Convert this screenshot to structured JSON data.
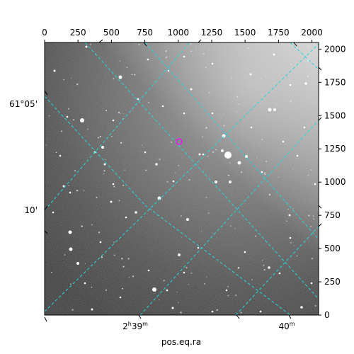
{
  "figure": {
    "xlabel": "pos.eq.ra",
    "pixel_x_ticks": [
      "0",
      "250",
      "500",
      "750",
      "1000",
      "1250",
      "1500",
      "1750",
      "2000"
    ],
    "pixel_y_ticks": [
      "0",
      "250",
      "500",
      "750",
      "1000",
      "1250",
      "1500",
      "1750",
      "2000"
    ],
    "dec_ticks": [
      "61°05'",
      "10'"
    ],
    "ra_ticks": [
      {
        "main": "2",
        "sup1": "h",
        "mid": "39",
        "sup2": "m"
      },
      {
        "main": "40",
        "sup2": "m"
      }
    ],
    "pixel_range": [
      0,
      2050
    ],
    "grid_color": "#27d6d6",
    "marker_color": "#ff00ff"
  }
}
